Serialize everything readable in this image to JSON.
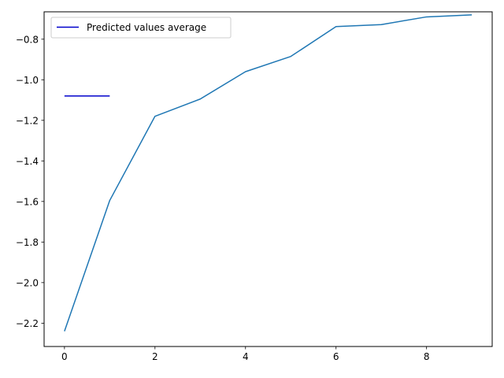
{
  "chart_data": {
    "type": "line",
    "title": "",
    "xlabel": "",
    "ylabel": "",
    "xlim": [
      -0.45,
      9.45
    ],
    "ylim": [
      -2.315,
      -0.665
    ],
    "x_ticks": [
      0,
      2,
      4,
      6,
      8
    ],
    "y_ticks": [
      -2.2,
      -2.0,
      -1.8,
      -1.6,
      -1.4,
      -1.2,
      -1.0,
      -0.8
    ],
    "x_tick_labels": [
      "0",
      "2",
      "4",
      "6",
      "8"
    ],
    "y_tick_labels": [
      "−2.2",
      "−2.0",
      "−1.8",
      "−1.6",
      "−1.4",
      "−1.2",
      "−1.0",
      "−0.8"
    ],
    "grid": false,
    "legend_position": "top-left",
    "series": [
      {
        "name": "",
        "color": "#1f77b4",
        "x": [
          0,
          1,
          2,
          3,
          4,
          5,
          6,
          7,
          8,
          9
        ],
        "y": [
          -2.24,
          -1.595,
          -1.18,
          -1.095,
          -0.96,
          -0.885,
          -0.738,
          -0.728,
          -0.69,
          -0.68
        ]
      },
      {
        "name": "Predicted values average",
        "color": "#0000cc",
        "x": [
          0,
          1
        ],
        "y": [
          -1.08,
          -1.08
        ]
      }
    ],
    "legend": [
      {
        "label": "Predicted values average",
        "color": "#0000cc"
      }
    ]
  }
}
